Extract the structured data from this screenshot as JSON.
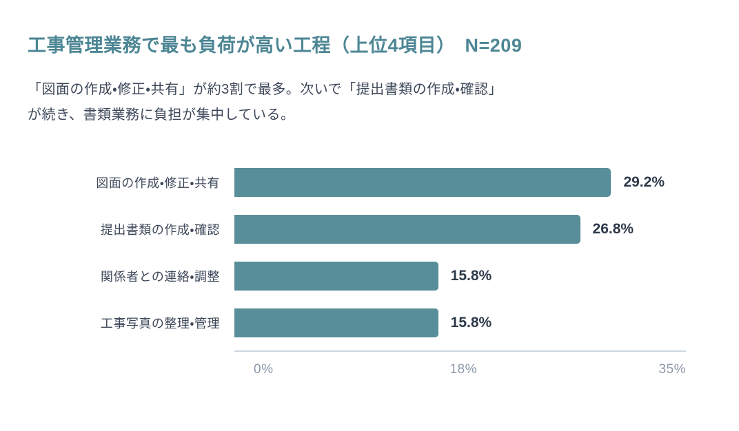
{
  "header": {
    "title": "工事管理業務で最も負荷が高い工程（上位4項目）　N=209",
    "subtitle_lines": [
      "「図面の作成・修正・共有」が約3割で最多。次いで「提出書類の作成・確認」",
      "が続き、書類業務に負担が集中している。"
    ]
  },
  "colors": {
    "title": "#4d8694",
    "bar": "#588e99",
    "label_text": "#3e485a",
    "value_text": "#2d3949",
    "tick_text": "#8d98a8",
    "axis_line": "#cdd5df",
    "background": "#ffffff"
  },
  "chart_data": {
    "type": "bar",
    "orientation": "horizontal",
    "title": "工事管理業務で最も負荷が高い工程（上位4項目）　N=209",
    "categories": [
      "図面の作成・修正・共有",
      "提出書類の作成・確認",
      "関係者との連絡・調整",
      "工事写真の整理・管理"
    ],
    "values": [
      29.2,
      26.8,
      15.8,
      15.8
    ],
    "value_labels": [
      "29.2%",
      "26.8%",
      "15.8%",
      "15.8%"
    ],
    "xlabel": "",
    "ylabel": "",
    "xlim": [
      0,
      35
    ],
    "x_ticks": [
      "0%",
      "18%",
      "35%"
    ],
    "grid": false,
    "legend": false
  }
}
